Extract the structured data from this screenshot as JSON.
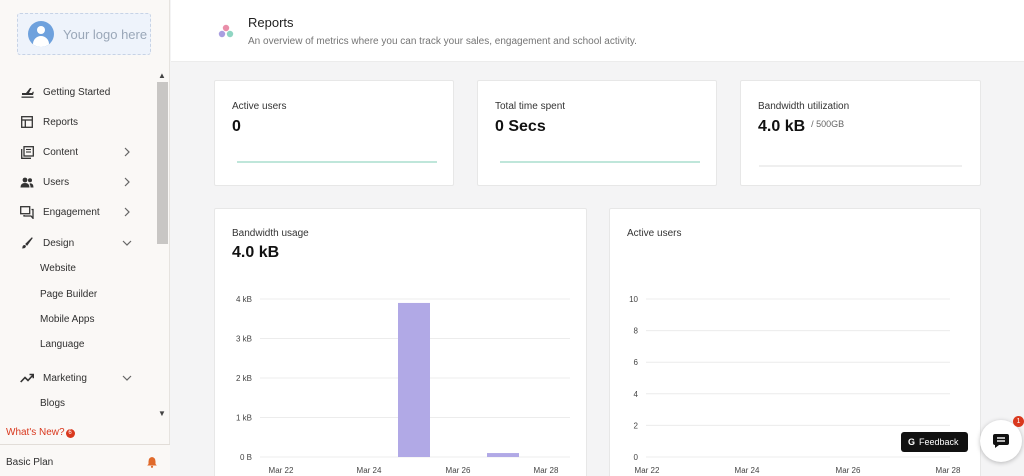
{
  "sidebar": {
    "logo_text": "Your logo here",
    "items": [
      {
        "label": "Getting Started",
        "icon": "plane-icon"
      },
      {
        "label": "Reports",
        "icon": "table-icon"
      },
      {
        "label": "Content",
        "icon": "content-icon"
      },
      {
        "label": "Users",
        "icon": "users-icon"
      },
      {
        "label": "Engagement",
        "icon": "chat-icon"
      },
      {
        "label": "Design",
        "icon": "brush-icon"
      },
      {
        "label": "Marketing",
        "icon": "trend-icon"
      }
    ],
    "design_subitems": [
      "Website",
      "Page Builder",
      "Mobile Apps",
      "Language"
    ],
    "marketing_subitems": [
      "Blogs"
    ],
    "whats_new": "What's New?",
    "whats_new_count": "6",
    "plan": "Basic Plan"
  },
  "header": {
    "title": "Reports",
    "subtitle": "An overview of metrics where you can track your sales, engagement and school activity."
  },
  "metrics": {
    "active_users": {
      "label": "Active users",
      "value": "0"
    },
    "time_spent": {
      "label": "Total time spent",
      "value": "0 Secs"
    },
    "bandwidth_util": {
      "label": "Bandwidth utilization",
      "value": "4.0 kB",
      "suffix": "/ 500GB"
    }
  },
  "charts": {
    "bandwidth": {
      "title": "Bandwidth usage",
      "value": "4.0 kB"
    },
    "active_users": {
      "title": "Active users"
    }
  },
  "chart_data": [
    {
      "type": "bar",
      "title": "Bandwidth usage",
      "y_ticks": [
        "0 B",
        "1 kB",
        "2 kB",
        "3 kB",
        "4 kB"
      ],
      "x_ticks": [
        "Mar 22",
        "Mar 24",
        "Mar 26",
        "Mar 28"
      ],
      "ylim": [
        0,
        4
      ],
      "bars": [
        {
          "x": "Mar 25",
          "value": 3.9
        },
        {
          "x": "Mar 27",
          "value": 0.1
        }
      ],
      "color": "#b1a9e6"
    },
    {
      "type": "line",
      "title": "Active users",
      "y_ticks": [
        "0",
        "2",
        "4",
        "6",
        "8",
        "10"
      ],
      "x_ticks": [
        "Mar 22",
        "Mar 24",
        "Mar 26",
        "Mar 28"
      ],
      "ylim": [
        0,
        10
      ]
    }
  ],
  "widgets": {
    "feedback": "Feedback",
    "chat_badge": "1"
  }
}
